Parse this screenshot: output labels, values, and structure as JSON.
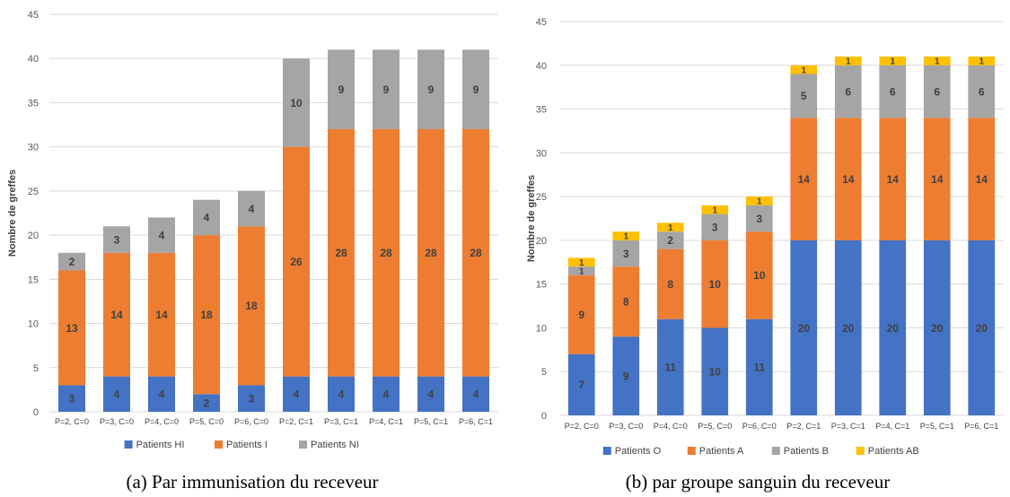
{
  "chart_data": [
    {
      "type": "bar",
      "stacked": true,
      "title": "",
      "xlabel": "",
      "ylabel": "Nombre de greffes",
      "ylim": [
        0,
        45
      ],
      "yticks": [
        0,
        5,
        10,
        15,
        20,
        25,
        30,
        35,
        40,
        45
      ],
      "grid": true,
      "legend_position": "bottom",
      "categories": [
        "P=2, C=0",
        "P=3, C=0",
        "P=4, C=0",
        "P=5, C=0",
        "P=6, C=0",
        "P=2, C=1",
        "P=3, C=1",
        "P=4, C=1",
        "P=5, C=1",
        "P=6, C=1"
      ],
      "series": [
        {
          "name": "Patients HI",
          "color": "#4472C4",
          "values": [
            3,
            4,
            4,
            2,
            3,
            4,
            4,
            4,
            4,
            4
          ]
        },
        {
          "name": "Patients I",
          "color": "#ED7D31",
          "values": [
            13,
            14,
            14,
            18,
            18,
            26,
            28,
            28,
            28,
            28
          ]
        },
        {
          "name": "Patients NI",
          "color": "#A5A5A5",
          "values": [
            2,
            3,
            4,
            4,
            4,
            10,
            9,
            9,
            9,
            9
          ]
        }
      ],
      "caption": "(a)  Par immunisation du receveur"
    },
    {
      "type": "bar",
      "stacked": true,
      "title": "",
      "xlabel": "",
      "ylabel": "Nombre de greffes",
      "ylim": [
        0,
        45
      ],
      "yticks": [
        0,
        5,
        10,
        15,
        20,
        25,
        30,
        35,
        40,
        45
      ],
      "grid": true,
      "legend_position": "bottom",
      "categories": [
        "P=2, C=0",
        "P=3, C=0",
        "P=4, C=0",
        "P=5, C=0",
        "P=6, C=0",
        "P=2, C=1",
        "P=3, C=1",
        "P=4, C=1",
        "P=5, C=1",
        "P=6, C=1"
      ],
      "series": [
        {
          "name": "Patients O",
          "color": "#4472C4",
          "values": [
            7,
            9,
            11,
            10,
            11,
            20,
            20,
            20,
            20,
            20
          ]
        },
        {
          "name": "Patients A",
          "color": "#ED7D31",
          "values": [
            9,
            8,
            8,
            10,
            10,
            14,
            14,
            14,
            14,
            14
          ]
        },
        {
          "name": "Patients B",
          "color": "#A5A5A5",
          "values": [
            1,
            3,
            2,
            3,
            3,
            5,
            6,
            6,
            6,
            6
          ]
        },
        {
          "name": "Patients AB",
          "color": "#FFC000",
          "values": [
            1,
            1,
            1,
            1,
            1,
            1,
            1,
            1,
            1,
            1
          ]
        }
      ],
      "caption": "(b) par groupe sanguin du receveur"
    }
  ]
}
